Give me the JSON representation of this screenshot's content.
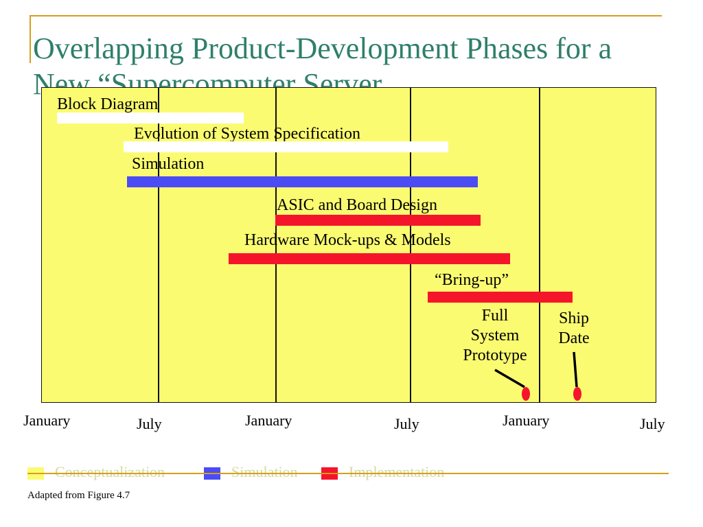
{
  "slide": {
    "title": "Overlapping Product-Development Phases for a New “Supercomputer Server",
    "footnote": "Adapted from Figure 4.7"
  },
  "colors": {
    "background": "#ffffff",
    "chart_fill": "#fbfb72",
    "conceptualization": "#ffffff",
    "simulation": "#4c4cf5",
    "implementation": "#f5152b",
    "title": "#2f7f6a",
    "accent_rule": "#d4a017"
  },
  "timeline": {
    "axis_labels": [
      "January",
      "July",
      "January",
      "July",
      "January",
      "July"
    ]
  },
  "phases": [
    {
      "label": "Block Diagram",
      "category": "conceptualization"
    },
    {
      "label": "Evolution of System Specification",
      "category": "conceptualization"
    },
    {
      "label": "Simulation",
      "category": "simulation"
    },
    {
      "label": "ASIC and Board Design",
      "category": "implementation"
    },
    {
      "label": "Hardware Mock-ups & Models",
      "category": "implementation"
    },
    {
      "label": "“Bring-up”",
      "category": "implementation"
    }
  ],
  "milestones": [
    {
      "label": "Full\nSystem\nPrototype"
    },
    {
      "label": "Ship\nDate"
    }
  ],
  "legend": [
    {
      "label": "Conceptualization",
      "category": "conceptualization"
    },
    {
      "label": "Simulation",
      "category": "simulation"
    },
    {
      "label": "Implementation",
      "category": "implementation"
    }
  ]
}
